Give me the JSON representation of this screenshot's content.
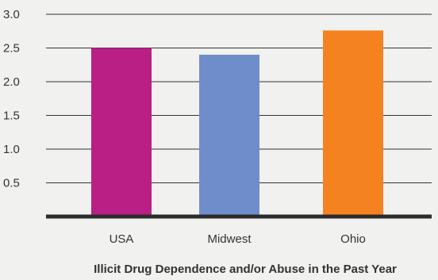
{
  "chart_data": {
    "type": "bar",
    "title": "",
    "xlabel": "Illicit Drug Dependence and/or Abuse in the Past Year",
    "ylabel": "",
    "categories": [
      "USA",
      "Midwest",
      "Ohio"
    ],
    "values": [
      2.5,
      2.4,
      2.76
    ],
    "ylim": [
      0,
      3.0
    ],
    "yticks": [
      {
        "value": 0.5,
        "label": "0.5"
      },
      {
        "value": 1.0,
        "label": "1.0"
      },
      {
        "value": 1.5,
        "label": "1.5"
      },
      {
        "value": 2.0,
        "label": "2.0"
      },
      {
        "value": 2.5,
        "label": "2.5"
      },
      {
        "value": 3.0,
        "label": "3.0"
      }
    ],
    "bar_colors": [
      "#b91f84",
      "#6f8dca",
      "#f58220"
    ],
    "grid": true,
    "grid_color": "#333333",
    "axis_color": "#2b2b2b",
    "background": "#f1f1f0"
  }
}
